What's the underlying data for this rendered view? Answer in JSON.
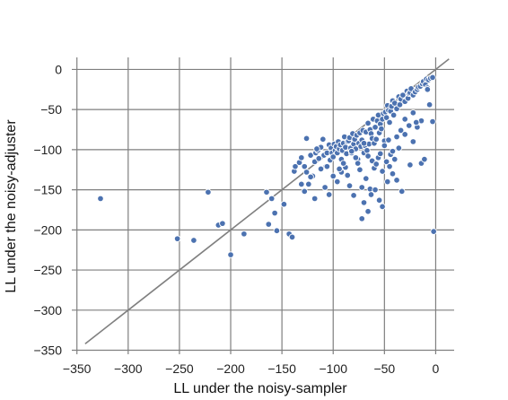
{
  "chart_data": {
    "type": "scatter",
    "title": "",
    "xlabel": "LL under the noisy-sampler",
    "ylabel": "LL under the noisy-adjuster",
    "xlim": [
      -355,
      18
    ],
    "ylim": [
      -355,
      15
    ],
    "xticks": [
      -350,
      -300,
      -250,
      -200,
      -150,
      -100,
      -50,
      0
    ],
    "yticks": [
      0,
      -50,
      -100,
      -150,
      -200,
      -250,
      -300,
      -350
    ],
    "xtick_labels": [
      "−350",
      "−300",
      "−250",
      "−200",
      "−150",
      "−100",
      "−50",
      "0"
    ],
    "ytick_labels": [
      "0",
      "−50",
      "−100",
      "−150",
      "−200",
      "−250",
      "−300",
      "−350"
    ],
    "grid": true,
    "reference_line": {
      "x": [
        -342,
        13
      ],
      "y": [
        -342,
        13
      ]
    },
    "point_color": "#4c72b0",
    "series": [
      {
        "x": [
          -327,
          -252,
          -236,
          -222,
          -212,
          -208,
          -200,
          -187,
          -165,
          -163,
          -160,
          -157,
          -155,
          -148,
          -143,
          -140,
          -138,
          -137,
          -133,
          -131,
          -128,
          -126,
          -124,
          -122,
          -120,
          -118,
          -117,
          -115,
          -114,
          -112,
          -110,
          -109,
          -107,
          -106,
          -104,
          -103,
          -102,
          -101,
          -100,
          -99,
          -98,
          -97,
          -96,
          -95,
          -94,
          -93,
          -92,
          -91,
          -90,
          -89,
          -88,
          -87,
          -86,
          -85,
          -84,
          -83,
          -82,
          -81,
          -80,
          -79,
          -78,
          -77,
          -76,
          -75,
          -74,
          -73,
          -72,
          -71,
          -70,
          -69,
          -68,
          -67,
          -66,
          -65,
          -64,
          -63,
          -62,
          -61,
          -60,
          -59,
          -58,
          -57,
          -56,
          -55,
          -54,
          -53,
          -52,
          -51,
          -50,
          -49,
          -48,
          -47,
          -46,
          -45,
          -44,
          -43,
          -42,
          -41,
          -40,
          -38,
          -36,
          -35,
          -34,
          -32,
          -30,
          -28,
          -27,
          -26,
          -25,
          -24,
          -22,
          -20,
          -18,
          -17,
          -15,
          -13,
          -12,
          -10,
          -9,
          -8,
          -7,
          -5,
          -3,
          -131,
          -128,
          -122,
          -118,
          -112,
          -108,
          -104,
          -100,
          -96,
          -92,
          -88,
          -84,
          -80,
          -76,
          -72,
          -68,
          -64,
          -60,
          -56,
          -52,
          -48,
          -44,
          -40,
          -36,
          -126,
          -116,
          -106,
          -94,
          -90,
          -86,
          -82,
          -78,
          -74,
          -70,
          -66,
          -62,
          -58,
          -54,
          -50,
          -46,
          -42,
          -38,
          -34,
          -30,
          -26,
          -22,
          -18,
          -14,
          -72,
          -70,
          -66,
          -63,
          -59,
          -55,
          -52,
          -47,
          -45,
          -42,
          -38,
          -33,
          -30,
          -25,
          -22,
          -19,
          -14,
          -11,
          -8,
          -6,
          -3,
          -2
        ],
        "y": [
          -161,
          -211,
          -213,
          -153,
          -194,
          -192,
          -231,
          -205,
          -153,
          -193,
          -161,
          -179,
          -201,
          -168,
          -205,
          -209,
          -127,
          -121,
          -116,
          -110,
          -121,
          -128,
          -143,
          -107,
          -133,
          -115,
          -104,
          -101,
          -111,
          -97,
          -87,
          -107,
          -121,
          -104,
          -94,
          -113,
          -98,
          -104,
          -109,
          -93,
          -101,
          -96,
          -104,
          -90,
          -99,
          -94,
          -112,
          -101,
          -92,
          -84,
          -97,
          -105,
          -90,
          -89,
          -85,
          -98,
          -104,
          -80,
          -93,
          -87,
          -99,
          -82,
          -112,
          -92,
          -79,
          -96,
          -88,
          -76,
          -104,
          -95,
          -78,
          -101,
          -67,
          -93,
          -75,
          -80,
          -86,
          -62,
          -92,
          -72,
          -87,
          -64,
          -57,
          -79,
          -68,
          -74,
          -62,
          -55,
          -89,
          -53,
          -60,
          -45,
          -51,
          -66,
          -52,
          -46,
          -39,
          -57,
          -42,
          -49,
          -34,
          -44,
          -37,
          -32,
          -40,
          -27,
          -36,
          -30,
          -29,
          -24,
          -32,
          -28,
          -25,
          -22,
          -21,
          -18,
          -15,
          -19,
          -12,
          -23,
          -13,
          -11,
          -10,
          -143,
          -152,
          -134,
          -161,
          -124,
          -147,
          -156,
          -133,
          -140,
          -128,
          -122,
          -145,
          -157,
          -117,
          -147,
          -136,
          -149,
          -123,
          -110,
          -127,
          -115,
          -106,
          -112,
          -98,
          -86,
          -99,
          -121,
          -124,
          -117,
          -132,
          -102,
          -110,
          -125,
          -92,
          -108,
          -114,
          -118,
          -105,
          -95,
          -88,
          -102,
          -84,
          -76,
          -81,
          -70,
          -90,
          -72,
          -64,
          -186,
          -166,
          -177,
          -156,
          -150,
          -163,
          -171,
          -140,
          -121,
          -130,
          -138,
          -152,
          -62,
          -119,
          -54,
          -66,
          -117,
          -112,
          -25,
          -44,
          -65,
          -202
        ]
      }
    ]
  }
}
